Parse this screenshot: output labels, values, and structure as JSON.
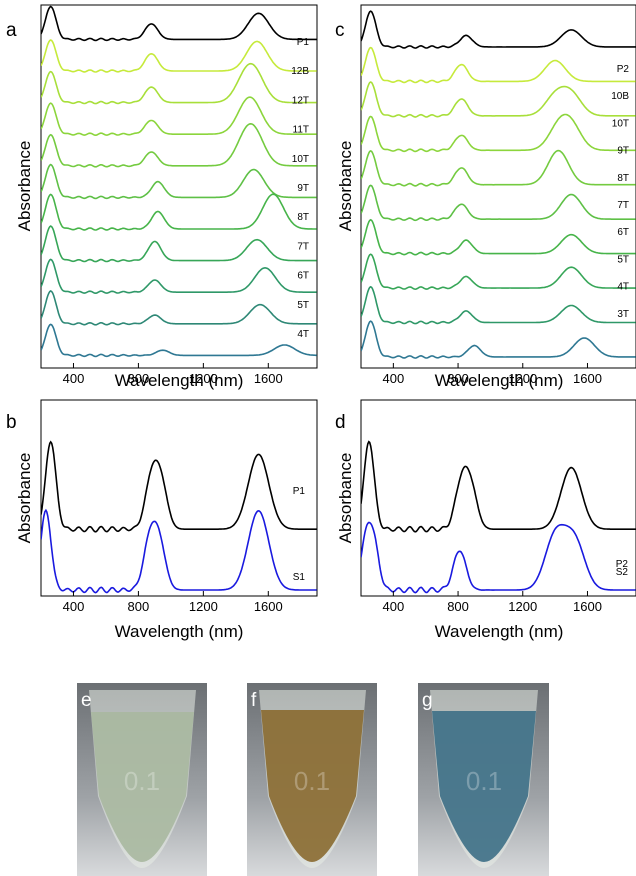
{
  "axis_titles": {
    "x": "Wavelength (nm)",
    "y": "Absorbance"
  },
  "x_ticks": [
    "400",
    "800",
    "1200",
    "1600"
  ],
  "panel_letters": {
    "a": "a",
    "b": "b",
    "c": "c",
    "d": "d",
    "e": "e",
    "f": "f",
    "g": "g"
  },
  "tube_marks": {
    "e": "0.1",
    "f": "0.1",
    "g": "0.1"
  },
  "photo_colors": {
    "e": "#a9b8a0",
    "f": "#8a6a30",
    "g": "#3d6f86"
  },
  "chart_data": [
    {
      "id": "a",
      "type": "line",
      "xlabel": "Wavelength (nm)",
      "ylabel": "Absorbance",
      "xlim": [
        200,
        1900
      ],
      "x_ticks": [
        400,
        800,
        1200,
        1600
      ],
      "y_ticks": "none",
      "stacked_offsets": true,
      "series": [
        {
          "name": "P1",
          "color": "#000000",
          "peaks": [
            [
              260,
              0.95
            ],
            [
              880,
              0.45
            ],
            [
              1540,
              0.75
            ]
          ]
        },
        {
          "name": "12B",
          "color": "#c6ea3c",
          "peaks": [
            [
              260,
              0.9
            ],
            [
              880,
              0.5
            ],
            [
              1530,
              0.85
            ]
          ]
        },
        {
          "name": "12T",
          "color": "#a8df3a",
          "peaks": [
            [
              260,
              0.9
            ],
            [
              880,
              0.45
            ],
            [
              1460,
              0.6
            ],
            [
              1520,
              0.65
            ]
          ]
        },
        {
          "name": "11T",
          "color": "#8cd53c",
          "peaks": [
            [
              260,
              0.9
            ],
            [
              880,
              0.4
            ],
            [
              1460,
              0.55
            ],
            [
              1510,
              0.6
            ]
          ]
        },
        {
          "name": "10T",
          "color": "#74cb40",
          "peaks": [
            [
              260,
              0.9
            ],
            [
              880,
              0.4
            ],
            [
              1460,
              0.65
            ],
            [
              1520,
              0.7
            ]
          ]
        },
        {
          "name": "9T",
          "color": "#5ec046",
          "peaks": [
            [
              260,
              0.95
            ],
            [
              920,
              0.45
            ],
            [
              1510,
              0.8
            ]
          ]
        },
        {
          "name": "8T",
          "color": "#47b44a",
          "peaks": [
            [
              260,
              1.0
            ],
            [
              920,
              0.5
            ],
            [
              1630,
              1.0
            ]
          ]
        },
        {
          "name": "7T",
          "color": "#37a658",
          "peaks": [
            [
              260,
              1.0
            ],
            [
              900,
              0.55
            ],
            [
              1530,
              0.6
            ]
          ]
        },
        {
          "name": "6T",
          "color": "#2f9868",
          "peaks": [
            [
              260,
              0.95
            ],
            [
              900,
              0.35
            ],
            [
              1580,
              0.7
            ]
          ]
        },
        {
          "name": "5T",
          "color": "#2e8876",
          "peaks": [
            [
              260,
              0.95
            ],
            [
              900,
              0.25
            ],
            [
              1550,
              0.55
            ]
          ]
        },
        {
          "name": "4T",
          "color": "#2f7893",
          "peaks": [
            [
              260,
              0.9
            ],
            [
              950,
              0.15
            ],
            [
              1700,
              0.3
            ]
          ]
        }
      ]
    },
    {
      "id": "b",
      "type": "line",
      "xlabel": "Wavelength (nm)",
      "ylabel": "Absorbance",
      "xlim": [
        200,
        1900
      ],
      "x_ticks": [
        400,
        800,
        1200,
        1600
      ],
      "y_ticks": "none",
      "series": [
        {
          "name": "P1",
          "color": "#000000",
          "peaks": [
            [
              260,
              1.0
            ],
            [
              880,
              0.55
            ],
            [
              940,
              0.5
            ],
            [
              1540,
              0.85
            ]
          ]
        },
        {
          "name": "S1",
          "color": "#1a1adf",
          "peaks": [
            [
              230,
              0.9
            ],
            [
              870,
              0.55
            ],
            [
              930,
              0.5
            ],
            [
              1540,
              0.9
            ]
          ]
        }
      ]
    },
    {
      "id": "c",
      "type": "line",
      "xlabel": "Wavelength (nm)",
      "ylabel": "Absorbance",
      "xlim": [
        200,
        1900
      ],
      "x_ticks": [
        400,
        800,
        1200,
        1600
      ],
      "y_ticks": "none",
      "stacked_offsets": true,
      "series": [
        {
          "name": "P2",
          "color": "#000000",
          "peaks": [
            [
              260,
              0.95
            ],
            [
              850,
              0.3
            ],
            [
              1500,
              0.45
            ]
          ]
        },
        {
          "name": "10B",
          "color": "#c6ea3c",
          "peaks": [
            [
              260,
              0.9
            ],
            [
              820,
              0.45
            ],
            [
              1400,
              0.55
            ]
          ]
        },
        {
          "name": "10T",
          "color": "#a8df3a",
          "peaks": [
            [
              260,
              0.9
            ],
            [
              820,
              0.45
            ],
            [
              1400,
              0.5
            ],
            [
              1500,
              0.55
            ]
          ]
        },
        {
          "name": "9T",
          "color": "#8cd53c",
          "peaks": [
            [
              260,
              0.9
            ],
            [
              820,
              0.4
            ],
            [
              1420,
              0.55
            ],
            [
              1500,
              0.6
            ]
          ]
        },
        {
          "name": "8T",
          "color": "#74cb40",
          "peaks": [
            [
              260,
              0.9
            ],
            [
              820,
              0.45
            ],
            [
              1420,
              0.9
            ]
          ]
        },
        {
          "name": "7T",
          "color": "#5ec046",
          "peaks": [
            [
              260,
              0.9
            ],
            [
              820,
              0.4
            ],
            [
              1500,
              0.65
            ]
          ]
        },
        {
          "name": "6T",
          "color": "#47b44a",
          "peaks": [
            [
              260,
              0.9
            ],
            [
              850,
              0.35
            ],
            [
              1500,
              0.5
            ]
          ]
        },
        {
          "name": "5T",
          "color": "#37a658",
          "peaks": [
            [
              260,
              0.9
            ],
            [
              850,
              0.3
            ],
            [
              1500,
              0.55
            ]
          ]
        },
        {
          "name": "4T",
          "color": "#2f9868",
          "peaks": [
            [
              260,
              0.95
            ],
            [
              850,
              0.3
            ],
            [
              1500,
              0.45
            ]
          ]
        },
        {
          "name": "3T",
          "color": "#2f7893",
          "peaks": [
            [
              260,
              0.95
            ],
            [
              900,
              0.3
            ],
            [
              1580,
              0.5
            ]
          ]
        }
      ]
    },
    {
      "id": "d",
      "type": "line",
      "xlabel": "Wavelength (nm)",
      "ylabel": "Absorbance",
      "xlim": [
        200,
        1900
      ],
      "x_ticks": [
        400,
        800,
        1200,
        1600
      ],
      "y_ticks": "none",
      "series": [
        {
          "name": "P2",
          "color": "#000000",
          "peaks": [
            [
              250,
              1.0
            ],
            [
              820,
              0.5
            ],
            [
              880,
              0.45
            ],
            [
              1500,
              0.7
            ]
          ]
        },
        {
          "name": "S2",
          "color": "#1a1adf",
          "peaks": [
            [
              230,
              0.55
            ],
            [
              280,
              0.5
            ],
            [
              810,
              0.45
            ],
            [
              1400,
              0.6
            ],
            [
              1520,
              0.55
            ]
          ]
        }
      ]
    }
  ]
}
